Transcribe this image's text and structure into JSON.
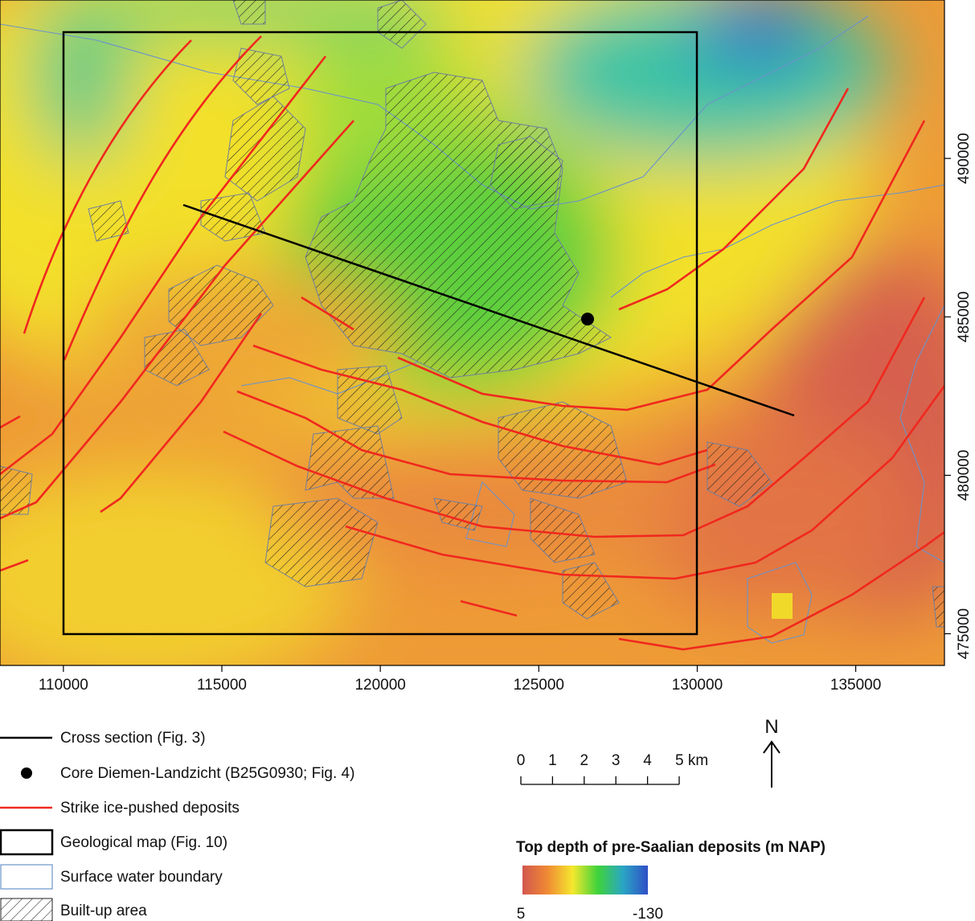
{
  "map": {
    "xlim": [
      108000,
      137800
    ],
    "ylim": [
      474000,
      495000
    ],
    "xticks": [
      110000,
      115000,
      120000,
      125000,
      130000,
      135000
    ],
    "yticks": [
      475000,
      480000,
      485000,
      490000
    ]
  },
  "legend": {
    "items": [
      "Cross section (Fig. 3)",
      "Core Diemen-Landzicht (B25G0930; Fig. 4)",
      "Strike ice-pushed deposits",
      "Geological map (Fig. 10)",
      "Surface water boundary",
      "Built-up area"
    ]
  },
  "scale_bar": {
    "labels": [
      "0",
      "1",
      "2",
      "3",
      "4",
      "5 km"
    ]
  },
  "north_arrow": {
    "label": "N"
  },
  "colorbar": {
    "title": "Top depth of pre-Saalian deposits (m NAP)",
    "min": 5,
    "max": -130,
    "colors": [
      "#d2574e",
      "#f08a34",
      "#f5e82e",
      "#3fd33a",
      "#2aa6c4",
      "#2f4fc6"
    ]
  }
}
